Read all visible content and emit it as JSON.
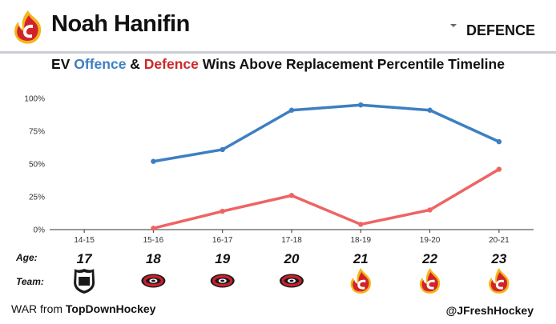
{
  "header": {
    "player_name": "Noah Hanifin",
    "position": "DEFENCE",
    "logo": "calgary-flames-logo"
  },
  "title": {
    "prefix": "EV ",
    "offence": "Offence",
    "amp": " & ",
    "defence": "Defence",
    "suffix": " Wins Above Replacement Percentile Timeline"
  },
  "chart_data": {
    "type": "line",
    "title": "EV Offence & Defence Wins Above Replacement Percentile Timeline",
    "categories": [
      "14-15",
      "15-16",
      "16-17",
      "17-18",
      "18-19",
      "19-20",
      "20-21"
    ],
    "ylim": [
      0,
      100
    ],
    "yticks": [
      "0%",
      "25%",
      "50%",
      "75%",
      "100%"
    ],
    "grid": false,
    "series": [
      {
        "name": "Offence",
        "color": "#3d7fc2",
        "values": [
          null,
          52,
          61,
          91,
          95,
          91,
          67
        ]
      },
      {
        "name": "Defence",
        "color": "#ee6464",
        "values": [
          null,
          1,
          14,
          26,
          4,
          15,
          46
        ]
      }
    ]
  },
  "age_row": {
    "label": "Age:",
    "values": [
      "17",
      "18",
      "19",
      "20",
      "21",
      "22",
      "23"
    ]
  },
  "team_row": {
    "label": "Team:",
    "teams": [
      "nhl-shield-logo",
      "carolina-hurricanes-logo",
      "carolina-hurricanes-logo",
      "carolina-hurricanes-logo",
      "calgary-flames-logo",
      "calgary-flames-logo",
      "calgary-flames-logo"
    ]
  },
  "footer": {
    "source_prefix": "WAR from ",
    "source_name": "TopDownHockey",
    "credit": "@JFreshHockey"
  }
}
